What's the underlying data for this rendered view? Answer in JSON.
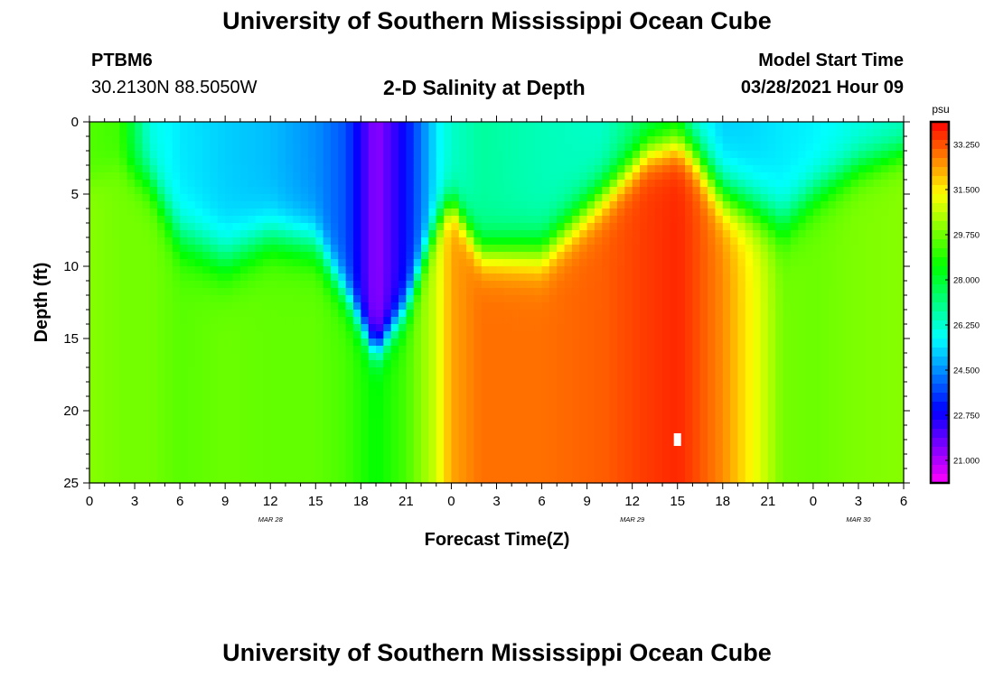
{
  "page": {
    "top_title": "University of Southern Mississippi Ocean Cube",
    "bottom_title": "University of Southern Mississippi Ocean Cube",
    "station_id": "PTBM6",
    "station_coords": "30.2130N  88.5050W",
    "subtitle": "2-D Salinity at Depth",
    "model_start_label": "Model Start Time",
    "model_start_value": "03/28/2021 Hour 09"
  },
  "chart_data": {
    "type": "heatmap",
    "title": "2-D Salinity at Depth",
    "xlabel": "Forecast Time(Z)",
    "ylabel": "Depth (ft)",
    "x_range": [
      0,
      54
    ],
    "x_tick_values": [
      0,
      3,
      6,
      9,
      12,
      15,
      18,
      21,
      24,
      27,
      30,
      33,
      36,
      39,
      42,
      45,
      48,
      51,
      54
    ],
    "x_tick_labels": [
      "0",
      "3",
      "6",
      "9",
      "12",
      "15",
      "18",
      "21",
      "0",
      "3",
      "6",
      "9",
      "12",
      "15",
      "18",
      "21",
      "0",
      "3",
      "6"
    ],
    "date_labels": [
      {
        "text": "MAR 28",
        "x": 12
      },
      {
        "text": "MAR 29",
        "x": 36
      },
      {
        "text": "MAR 30",
        "x": 51
      }
    ],
    "y_range": [
      0,
      25
    ],
    "y_ticks": [
      0,
      5,
      10,
      15,
      20,
      25
    ],
    "colorbar": {
      "unit": "psu",
      "min": 20.125,
      "max": 34.125,
      "ticks": [
        "33.250",
        "31.500",
        "29.750",
        "28.000",
        "26.250",
        "24.500",
        "22.750",
        "21.000"
      ]
    },
    "marker": {
      "x": 39,
      "y": 22
    },
    "profiles": [
      {
        "time": 0,
        "surface": 29.4,
        "bottom": 30.0,
        "thermocline_depth": 4,
        "thickness": 2.5
      },
      {
        "time": 2,
        "surface": 29.2,
        "bottom": 29.8,
        "thermocline_depth": 3,
        "thickness": 2.5
      },
      {
        "time": 4,
        "surface": 26.0,
        "bottom": 29.8,
        "thermocline_depth": 4,
        "thickness": 3.5
      },
      {
        "time": 6,
        "surface": 25.5,
        "bottom": 29.5,
        "thermocline_depth": 8,
        "thickness": 4
      },
      {
        "time": 9,
        "surface": 25.2,
        "bottom": 29.7,
        "thermocline_depth": 9.5,
        "thickness": 4
      },
      {
        "time": 12,
        "surface": 25.0,
        "bottom": 29.6,
        "thermocline_depth": 8,
        "thickness": 3.5
      },
      {
        "time": 15,
        "surface": 24.5,
        "bottom": 29.6,
        "thermocline_depth": 8.5,
        "thickness": 3.5
      },
      {
        "time": 17,
        "surface": 23.8,
        "bottom": 29.3,
        "thermocline_depth": 12,
        "thickness": 3
      },
      {
        "time": 19,
        "surface": 21.3,
        "bottom": 28.5,
        "thermocline_depth": 16,
        "thickness": 2.5
      },
      {
        "time": 21,
        "surface": 23.0,
        "bottom": 29.3,
        "thermocline_depth": 13,
        "thickness": 3
      },
      {
        "time": 23,
        "surface": 25.5,
        "bottom": 30.8,
        "thermocline_depth": 7,
        "thickness": 3
      },
      {
        "time": 24,
        "surface": 26.3,
        "bottom": 32.3,
        "thermocline_depth": 5.5,
        "thickness": 2.5
      },
      {
        "time": 26,
        "surface": 26.8,
        "bottom": 32.9,
        "thermocline_depth": 9,
        "thickness": 3
      },
      {
        "time": 30,
        "surface": 26.5,
        "bottom": 32.9,
        "thermocline_depth": 9,
        "thickness": 3.5
      },
      {
        "time": 34,
        "surface": 26.3,
        "bottom": 33.1,
        "thermocline_depth": 5,
        "thickness": 3.5
      },
      {
        "time": 37,
        "surface": 27.5,
        "bottom": 33.5,
        "thermocline_depth": 2,
        "thickness": 3
      },
      {
        "time": 39,
        "surface": 28.0,
        "bottom": 33.7,
        "thermocline_depth": 1.5,
        "thickness": 3
      },
      {
        "time": 40,
        "surface": 26.0,
        "bottom": 33.4,
        "thermocline_depth": 2,
        "thickness": 3.5
      },
      {
        "time": 42,
        "surface": 25.2,
        "bottom": 32.6,
        "thermocline_depth": 5,
        "thickness": 4
      },
      {
        "time": 44,
        "surface": 25.3,
        "bottom": 31.3,
        "thermocline_depth": 6,
        "thickness": 4
      },
      {
        "time": 46,
        "surface": 25.5,
        "bottom": 29.8,
        "thermocline_depth": 7,
        "thickness": 4
      },
      {
        "time": 48,
        "surface": 25.6,
        "bottom": 29.7,
        "thermocline_depth": 5,
        "thickness": 3.5
      },
      {
        "time": 51,
        "surface": 26.0,
        "bottom": 29.9,
        "thermocline_depth": 3,
        "thickness": 3
      },
      {
        "time": 54,
        "surface": 26.4,
        "bottom": 30.0,
        "thermocline_depth": 2,
        "thickness": 2.5
      }
    ]
  }
}
